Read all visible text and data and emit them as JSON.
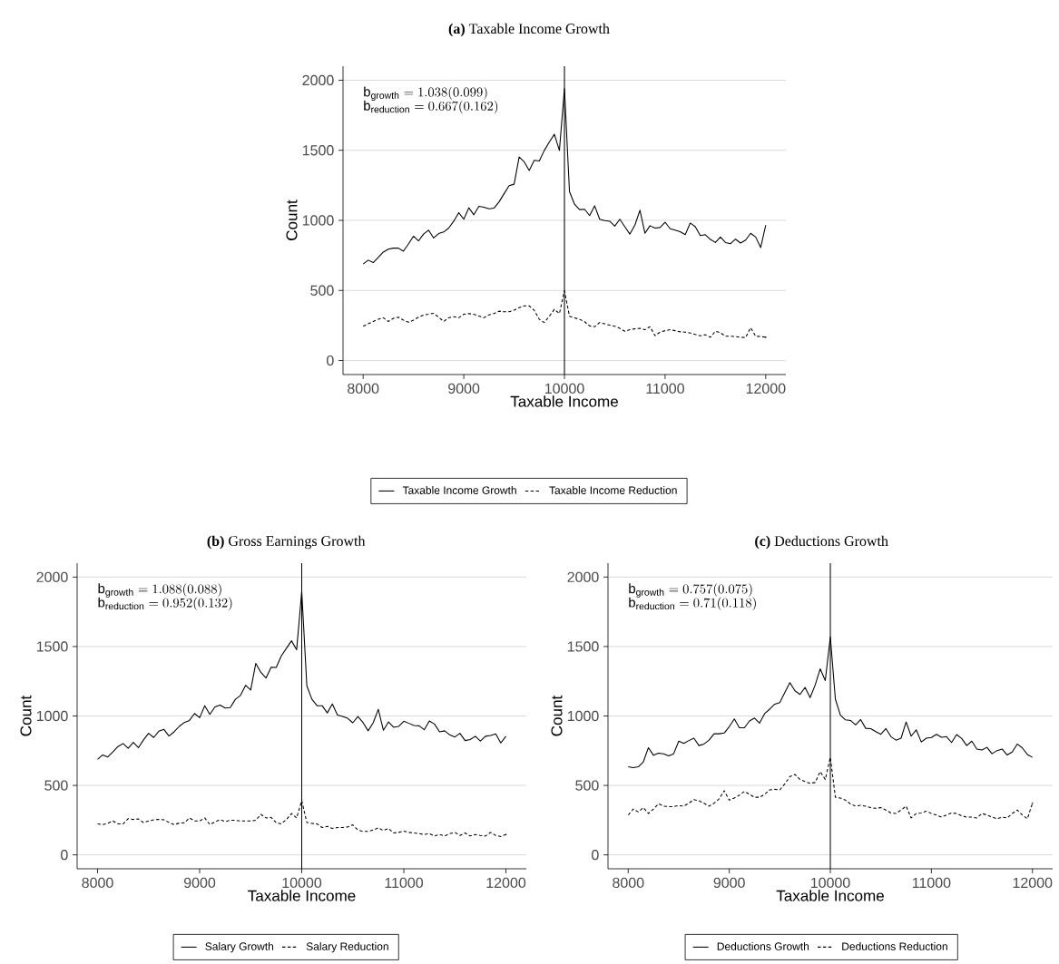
{
  "chart_data": [
    {
      "type": "line",
      "title": "**(a)** Taxable Income Growth",
      "xlabel": "Taxable Income",
      "ylabel": "Count",
      "x": [
        8000,
        8050,
        8100,
        8150,
        8200,
        8250,
        8300,
        8350,
        8400,
        8450,
        8500,
        8550,
        8600,
        8650,
        8700,
        8750,
        8800,
        8850,
        8900,
        8950,
        9000,
        9050,
        9100,
        9150,
        9200,
        9250,
        9300,
        9350,
        9400,
        9450,
        9500,
        9550,
        9600,
        9650,
        9700,
        9750,
        9800,
        9850,
        9900,
        9950,
        10000,
        10050,
        10100,
        10150,
        10200,
        10250,
        10300,
        10350,
        10400,
        10450,
        10500,
        10550,
        10600,
        10650,
        10700,
        10750,
        10800,
        10850,
        10900,
        10950,
        11000,
        11050,
        11100,
        11150,
        11200,
        11250,
        11300,
        11350,
        11400,
        11450,
        11500,
        11550,
        11600,
        11650,
        11700,
        11750,
        11800,
        11850,
        11900,
        11950,
        12000
      ],
      "series": [
        {
          "name": "Taxable Income Growth",
          "color": "#000000",
          "line_style": "solid",
          "values": [
            689,
            716,
            699,
            736,
            774,
            795,
            802,
            802,
            780,
            832,
            887,
            853,
            902,
            930,
            874,
            906,
            917,
            945,
            994,
            1055,
            1008,
            1090,
            1040,
            1100,
            1094,
            1083,
            1087,
            1132,
            1190,
            1247,
            1258,
            1452,
            1418,
            1356,
            1429,
            1424,
            1499,
            1560,
            1614,
            1499,
            1940,
            1205,
            1115,
            1077,
            1079,
            1034,
            1104,
            1008,
            998,
            994,
            959,
            1008,
            955,
            902,
            966,
            1072,
            908,
            962,
            945,
            949,
            987,
            940,
            930,
            919,
            898,
            981,
            955,
            891,
            898,
            864,
            842,
            881,
            842,
            834,
            866,
            838,
            859,
            908,
            881,
            806,
            966
          ]
        },
        {
          "name": "Taxable Income Reduction",
          "color": "#000000",
          "line_style": "dashed",
          "values": [
            245,
            262,
            279,
            294,
            305,
            279,
            301,
            309,
            288,
            273,
            288,
            309,
            324,
            330,
            337,
            309,
            279,
            305,
            313,
            305,
            330,
            335,
            330,
            318,
            305,
            326,
            335,
            352,
            348,
            348,
            360,
            377,
            390,
            390,
            358,
            294,
            271,
            316,
            365,
            335,
            497,
            316,
            305,
            294,
            277,
            247,
            241,
            271,
            262,
            252,
            245,
            230,
            209,
            220,
            226,
            230,
            220,
            241,
            177,
            203,
            213,
            220,
            213,
            205,
            203,
            196,
            186,
            177,
            184,
            166,
            209,
            198,
            173,
            173,
            171,
            166,
            164,
            235,
            173,
            171,
            166
          ]
        }
      ],
      "xlim": [
        7800,
        12200
      ],
      "ylim": [
        -100,
        2100
      ],
      "xticks": [
        8000,
        9000,
        10000,
        11000,
        12000
      ],
      "yticks": [
        0,
        500,
        1000,
        1500,
        2000
      ],
      "grid": "y",
      "legend": "bottom",
      "ref_lines": [
        {
          "axis": "x",
          "value": 10000,
          "color": "#000000"
        }
      ],
      "annotations": [
        "\\mathrm{b}_{\\mathrm{growth}} = 1.038(0.099)",
        "\\mathrm{b}_{\\mathrm{reduction}} = 0.667(0.162)"
      ]
    },
    {
      "type": "line",
      "title": "**(b)** Gross Earnings Growth",
      "xlabel": "Taxable Income",
      "ylabel": "Count",
      "x": [
        8000,
        8050,
        8100,
        8150,
        8200,
        8250,
        8300,
        8350,
        8400,
        8450,
        8500,
        8550,
        8600,
        8650,
        8700,
        8750,
        8800,
        8850,
        8900,
        8950,
        9000,
        9050,
        9100,
        9150,
        9200,
        9250,
        9300,
        9350,
        9400,
        9450,
        9500,
        9550,
        9600,
        9650,
        9700,
        9750,
        9800,
        9850,
        9900,
        9950,
        10000,
        10050,
        10100,
        10150,
        10200,
        10250,
        10300,
        10350,
        10400,
        10450,
        10500,
        10550,
        10600,
        10650,
        10700,
        10750,
        10800,
        10850,
        10900,
        10950,
        11000,
        11050,
        11100,
        11150,
        11200,
        11250,
        11300,
        11350,
        11400,
        11450,
        11500,
        11550,
        11600,
        11650,
        11700,
        11750,
        11800,
        11850,
        11900,
        11950,
        12000
      ],
      "series": [
        {
          "name": "Salary Growth",
          "color": "#000000",
          "line_style": "solid",
          "values": [
            687,
            720,
            705,
            741,
            780,
            802,
            767,
            810,
            772,
            828,
            875,
            845,
            890,
            903,
            856,
            886,
            925,
            953,
            968,
            1018,
            988,
            1074,
            1011,
            1065,
            1078,
            1057,
            1061,
            1120,
            1148,
            1221,
            1187,
            1379,
            1314,
            1273,
            1351,
            1349,
            1433,
            1487,
            1541,
            1476,
            1898,
            1217,
            1120,
            1074,
            1074,
            1022,
            1087,
            1007,
            996,
            983,
            951,
            996,
            953,
            893,
            951,
            1048,
            897,
            957,
            919,
            925,
            962,
            947,
            931,
            929,
            901,
            964,
            942,
            886,
            893,
            864,
            849,
            875,
            823,
            830,
            854,
            819,
            854,
            860,
            871,
            806,
            854
          ]
        },
        {
          "name": "Salary Reduction",
          "color": "#000000",
          "line_style": "dashed",
          "values": [
            223,
            218,
            227,
            244,
            223,
            223,
            261,
            255,
            259,
            233,
            244,
            253,
            255,
            253,
            233,
            218,
            229,
            231,
            266,
            244,
            244,
            266,
            218,
            238,
            253,
            240,
            249,
            249,
            244,
            244,
            244,
            249,
            292,
            266,
            270,
            231,
            223,
            255,
            298,
            266,
            391,
            233,
            227,
            223,
            197,
            205,
            190,
            197,
            197,
            201,
            216,
            179,
            169,
            169,
            179,
            195,
            175,
            190,
            158,
            162,
            171,
            162,
            158,
            153,
            147,
            153,
            136,
            147,
            136,
            153,
            162,
            140,
            158,
            136,
            147,
            140,
            136,
            162,
            140,
            132,
            147
          ]
        }
      ],
      "xlim": [
        7800,
        12200
      ],
      "ylim": [
        -100,
        2100
      ],
      "xticks": [
        8000,
        9000,
        10000,
        11000,
        12000
      ],
      "yticks": [
        0,
        500,
        1000,
        1500,
        2000
      ],
      "grid": "y",
      "legend": "bottom",
      "ref_lines": [
        {
          "axis": "x",
          "value": 10000,
          "color": "#000000"
        }
      ],
      "annotations": [
        "\\mathrm{b}_{\\mathrm{growth}} = 1.088(0.088)",
        "\\mathrm{b}_{\\mathrm{reduction}} = 0.952(0.132)"
      ]
    },
    {
      "type": "line",
      "title": "**(c)** Deductions Growth",
      "xlabel": "Taxable Income",
      "ylabel": "Count",
      "x": [
        8000,
        8050,
        8100,
        8150,
        8200,
        8250,
        8300,
        8350,
        8400,
        8450,
        8500,
        8550,
        8600,
        8650,
        8700,
        8750,
        8800,
        8850,
        8900,
        8950,
        9000,
        9050,
        9100,
        9150,
        9200,
        9250,
        9300,
        9350,
        9400,
        9450,
        9500,
        9550,
        9600,
        9650,
        9700,
        9750,
        9800,
        9850,
        9900,
        9950,
        10000,
        10050,
        10100,
        10150,
        10200,
        10250,
        10300,
        10350,
        10400,
        10450,
        10500,
        10550,
        10600,
        10650,
        10700,
        10750,
        10800,
        10850,
        10900,
        10950,
        11000,
        11050,
        11100,
        11150,
        11200,
        11250,
        11300,
        11350,
        11400,
        11450,
        11500,
        11550,
        11600,
        11650,
        11700,
        11750,
        11800,
        11850,
        11900,
        11950,
        12000
      ],
      "series": [
        {
          "name": "Deductions Growth",
          "color": "#000000",
          "line_style": "solid",
          "values": [
            634,
            628,
            634,
            670,
            772,
            717,
            732,
            728,
            713,
            728,
            819,
            802,
            823,
            840,
            787,
            798,
            826,
            872,
            872,
            877,
            923,
            979,
            915,
            915,
            964,
            985,
            949,
            1017,
            1049,
            1085,
            1096,
            1170,
            1240,
            1181,
            1155,
            1206,
            1132,
            1223,
            1340,
            1255,
            1570,
            1121,
            1006,
            972,
            968,
            936,
            974,
            911,
            909,
            887,
            868,
            909,
            851,
            826,
            840,
            957,
            855,
            900,
            813,
            840,
            845,
            868,
            847,
            851,
            809,
            866,
            838,
            787,
            819,
            762,
            755,
            774,
            728,
            751,
            762,
            719,
            740,
            798,
            770,
            723,
            702
          ]
        },
        {
          "name": "Deductions Reduction",
          "color": "#000000",
          "line_style": "dashed",
          "values": [
            287,
            330,
            309,
            340,
            298,
            330,
            368,
            351,
            347,
            347,
            355,
            351,
            372,
            398,
            389,
            372,
            351,
            372,
            404,
            462,
            394,
            409,
            430,
            457,
            436,
            415,
            415,
            436,
            468,
            472,
            468,
            511,
            564,
            579,
            543,
            528,
            515,
            521,
            600,
            543,
            702,
            415,
            409,
            394,
            366,
            351,
            357,
            351,
            340,
            336,
            340,
            323,
            302,
            298,
            323,
            351,
            266,
            298,
            302,
            315,
            298,
            287,
            272,
            287,
            302,
            298,
            281,
            272,
            272,
            266,
            298,
            287,
            272,
            260,
            272,
            266,
            298,
            323,
            287,
            260,
            372
          ]
        }
      ],
      "xlim": [
        7800,
        12200
      ],
      "ylim": [
        -100,
        2100
      ],
      "xticks": [
        8000,
        9000,
        10000,
        11000,
        12000
      ],
      "yticks": [
        0,
        500,
        1000,
        1500,
        2000
      ],
      "grid": "y",
      "legend": "bottom",
      "ref_lines": [
        {
          "axis": "x",
          "value": 10000,
          "color": "#000000"
        }
      ],
      "annotations": [
        "\\mathrm{b}_{\\mathrm{growth}} = 0.757(0.075)",
        "\\mathrm{b}_{\\mathrm{reduction}} = 0.71(0.118)"
      ]
    }
  ]
}
